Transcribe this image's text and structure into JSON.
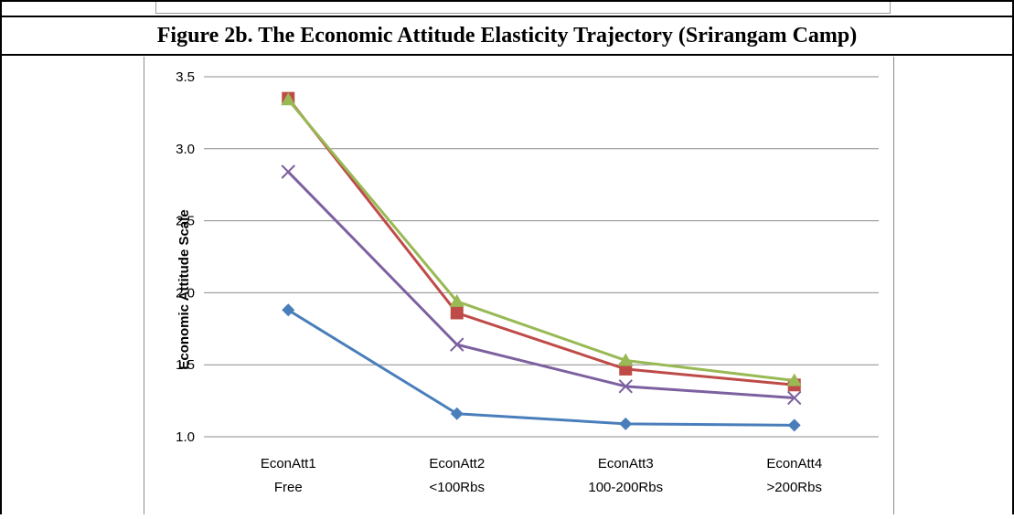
{
  "figure": {
    "caption": "Figure 2b.  The Economic Attitude Elasticity Trajectory (Srirangam Camp)"
  },
  "chart_data": {
    "type": "line",
    "title": "",
    "xlabel": "",
    "ylabel": "Economic Attitude Scale",
    "ylim": [
      1.0,
      3.5
    ],
    "yticks": [
      "1.0",
      "1.5",
      "2.0",
      "2.5",
      "3.0",
      "3.5"
    ],
    "ytick_values": [
      1.0,
      1.5,
      2.0,
      2.5,
      3.0,
      3.5
    ],
    "grid": "horizontal",
    "legend": "none",
    "categories": [
      {
        "line1": "EconAtt1",
        "line2": "Free"
      },
      {
        "line1": "EconAtt2",
        "line2": "<100Rbs"
      },
      {
        "line1": "EconAtt3",
        "line2": "100-200Rbs"
      },
      {
        "line1": "EconAtt4",
        "line2": ">200Rbs"
      }
    ],
    "series": [
      {
        "marker": "diamond",
        "color": "#4a7ebb",
        "values": [
          1.88,
          1.16,
          1.09,
          1.08
        ]
      },
      {
        "marker": "square",
        "color": "#be4b48",
        "values": [
          3.35,
          1.86,
          1.47,
          1.36
        ]
      },
      {
        "marker": "triangle",
        "color": "#98b954",
        "values": [
          3.34,
          1.94,
          1.53,
          1.39
        ]
      },
      {
        "marker": "x",
        "color": "#7d60a0",
        "values": [
          2.84,
          1.64,
          1.35,
          1.27
        ]
      }
    ]
  }
}
